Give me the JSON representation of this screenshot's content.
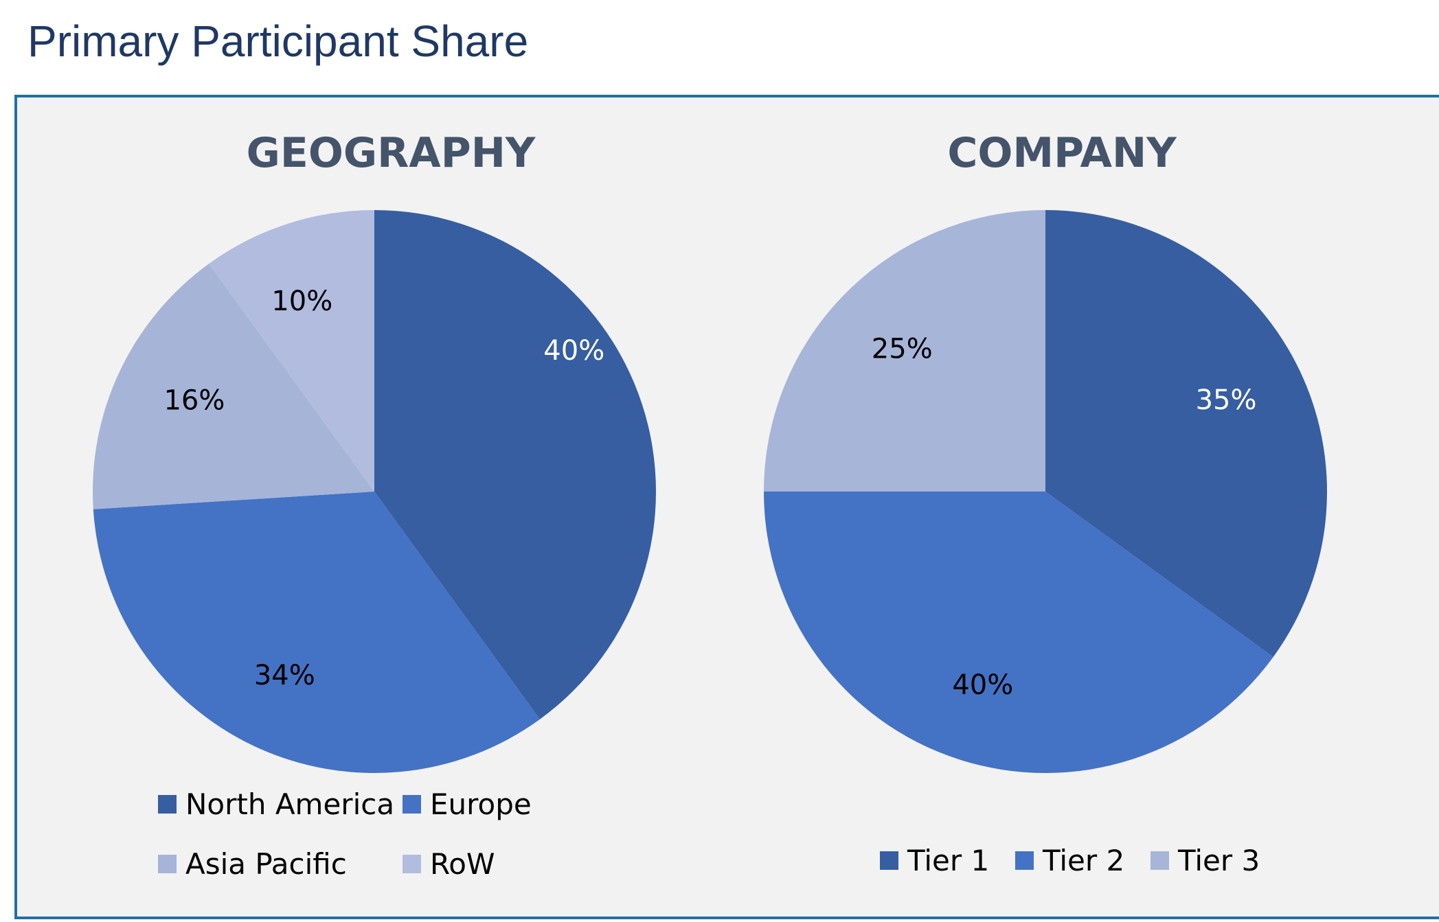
{
  "page_title": "Primary Participant Share",
  "colors": {
    "title": "#1f3864",
    "panel_border": "#1f6fa8",
    "panel_bg": "#f2f2f2"
  },
  "chart_data": [
    {
      "type": "pie",
      "title": "GEOGRAPHY",
      "slices": [
        {
          "name": "North America",
          "value": 40,
          "label": "40%",
          "color": "#365ea1",
          "label_color": "#ffffff"
        },
        {
          "name": "Europe",
          "value": 34,
          "label": "34%",
          "color": "#4472c4",
          "label_color": "#000000"
        },
        {
          "name": "Asia Pacific",
          "value": 16,
          "label": "16%",
          "color": "#a6b4d8",
          "label_color": "#000000"
        },
        {
          "name": "RoW",
          "value": 10,
          "label": "10%",
          "color": "#b1bcdf",
          "label_color": "#000000"
        }
      ],
      "legend_position": "bottom"
    },
    {
      "type": "pie",
      "title": "COMPANY",
      "slices": [
        {
          "name": "Tier 1",
          "value": 35,
          "label": "35%",
          "color": "#365ea1",
          "label_color": "#ffffff"
        },
        {
          "name": "Tier 2",
          "value": 40,
          "label": "40%",
          "color": "#4472c4",
          "label_color": "#000000"
        },
        {
          "name": "Tier 3",
          "value": 25,
          "label": "25%",
          "color": "#a7b5d9",
          "label_color": "#000000"
        }
      ],
      "legend_position": "bottom"
    }
  ]
}
